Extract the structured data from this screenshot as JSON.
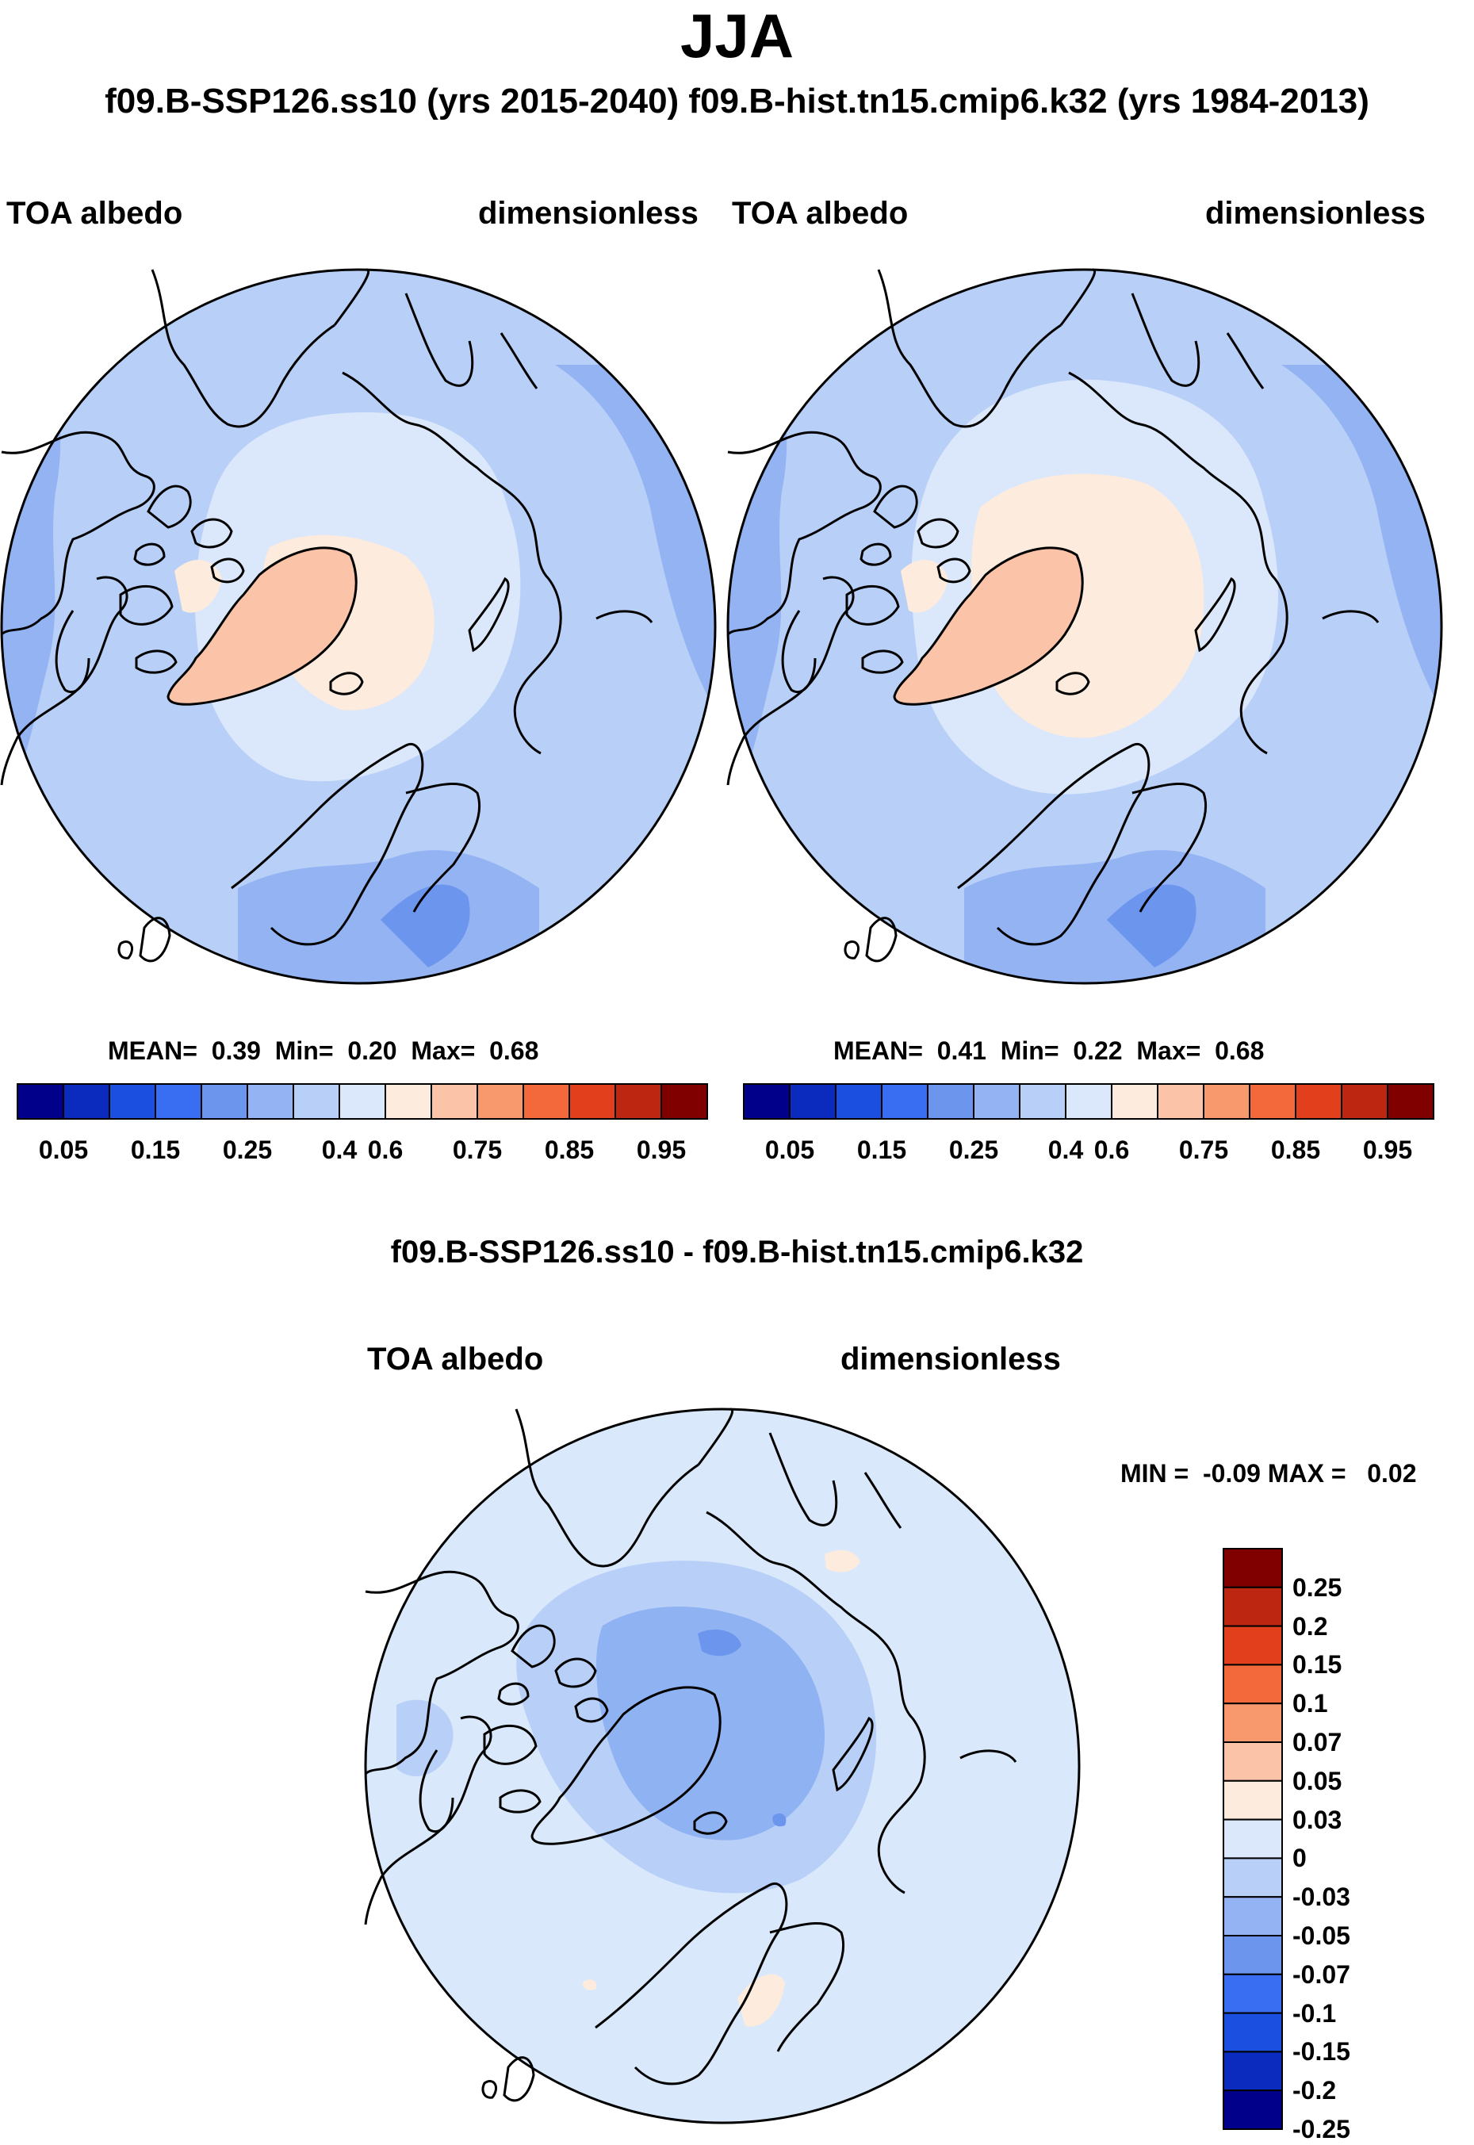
{
  "header": {
    "title": "JJA",
    "subtitle": "f09.B-SSP126.ss10 (yrs 2015-2040)  f09.B-hist.tn15.cmip6.k32 (yrs 1984-2013)"
  },
  "colors": {
    "land_outline": "#000000",
    "diff_background": "#d9e9fb",
    "diff_core": "#8fb2f2"
  },
  "chart_data": [
    {
      "type": "map",
      "projection": "north-polar-stereographic",
      "case": "f09.B-SSP126.ss10",
      "variable": "TOA albedo",
      "units": "dimensionless",
      "stats": {
        "mean_label": "MEAN=",
        "mean": "0.39",
        "min_label": "Min=",
        "min": "0.20",
        "max_label": "Max=",
        "max": "0.68"
      },
      "colorbar": {
        "orientation": "horizontal",
        "tick_labels": [
          "0.05",
          "0.15",
          "0.25",
          "0.4",
          "0.6",
          "0.75",
          "0.85",
          "0.95"
        ],
        "colors": [
          "#00008b",
          "#0a2bbd",
          "#1a4fe0",
          "#3a6ef2",
          "#6c95ee",
          "#93b3f3",
          "#b8cff8",
          "#dbe8fb",
          "#fdebdd",
          "#fbc4a8",
          "#f7986d",
          "#f4693b",
          "#e2401c",
          "#bd2611",
          "#800000"
        ]
      }
    },
    {
      "type": "map",
      "projection": "north-polar-stereographic",
      "case": "f09.B-hist.tn15.cmip6.k32",
      "variable": "TOA albedo",
      "units": "dimensionless",
      "stats": {
        "mean_label": "MEAN=",
        "mean": "0.41",
        "min_label": "Min=",
        "min": "0.22",
        "max_label": "Max=",
        "max": "0.68"
      },
      "colorbar": {
        "orientation": "horizontal",
        "tick_labels": [
          "0.05",
          "0.15",
          "0.25",
          "0.4",
          "0.6",
          "0.75",
          "0.85",
          "0.95"
        ],
        "colors": [
          "#00008b",
          "#0a2bbd",
          "#1a4fe0",
          "#3a6ef2",
          "#6c95ee",
          "#93b3f3",
          "#b8cff8",
          "#dbe8fb",
          "#fdebdd",
          "#fbc4a8",
          "#f7986d",
          "#f4693b",
          "#e2401c",
          "#bd2611",
          "#800000"
        ]
      }
    },
    {
      "type": "map",
      "projection": "north-polar-stereographic",
      "title": "f09.B-SSP126.ss10 - f09.B-hist.tn15.cmip6.k32",
      "variable": "TOA albedo",
      "units": "dimensionless",
      "minmax_text": "MIN =  -0.09 MAX =   0.02",
      "colorbar": {
        "orientation": "vertical",
        "tick_labels": [
          "0.25",
          "0.2",
          "0.15",
          "0.1",
          "0.07",
          "0.05",
          "0.03",
          "0",
          "-0.03",
          "-0.05",
          "-0.07",
          "-0.1",
          "-0.15",
          "-0.2",
          "-0.25"
        ],
        "colors": [
          "#800000",
          "#bd2611",
          "#e2401c",
          "#f4693b",
          "#f7986d",
          "#fbc4a8",
          "#fdebdd",
          "#dbe8fb",
          "#b8cff8",
          "#93b3f3",
          "#6c95ee",
          "#3a6ef2",
          "#1a4fe0",
          "#0a2bbd",
          "#00008b"
        ]
      }
    }
  ]
}
